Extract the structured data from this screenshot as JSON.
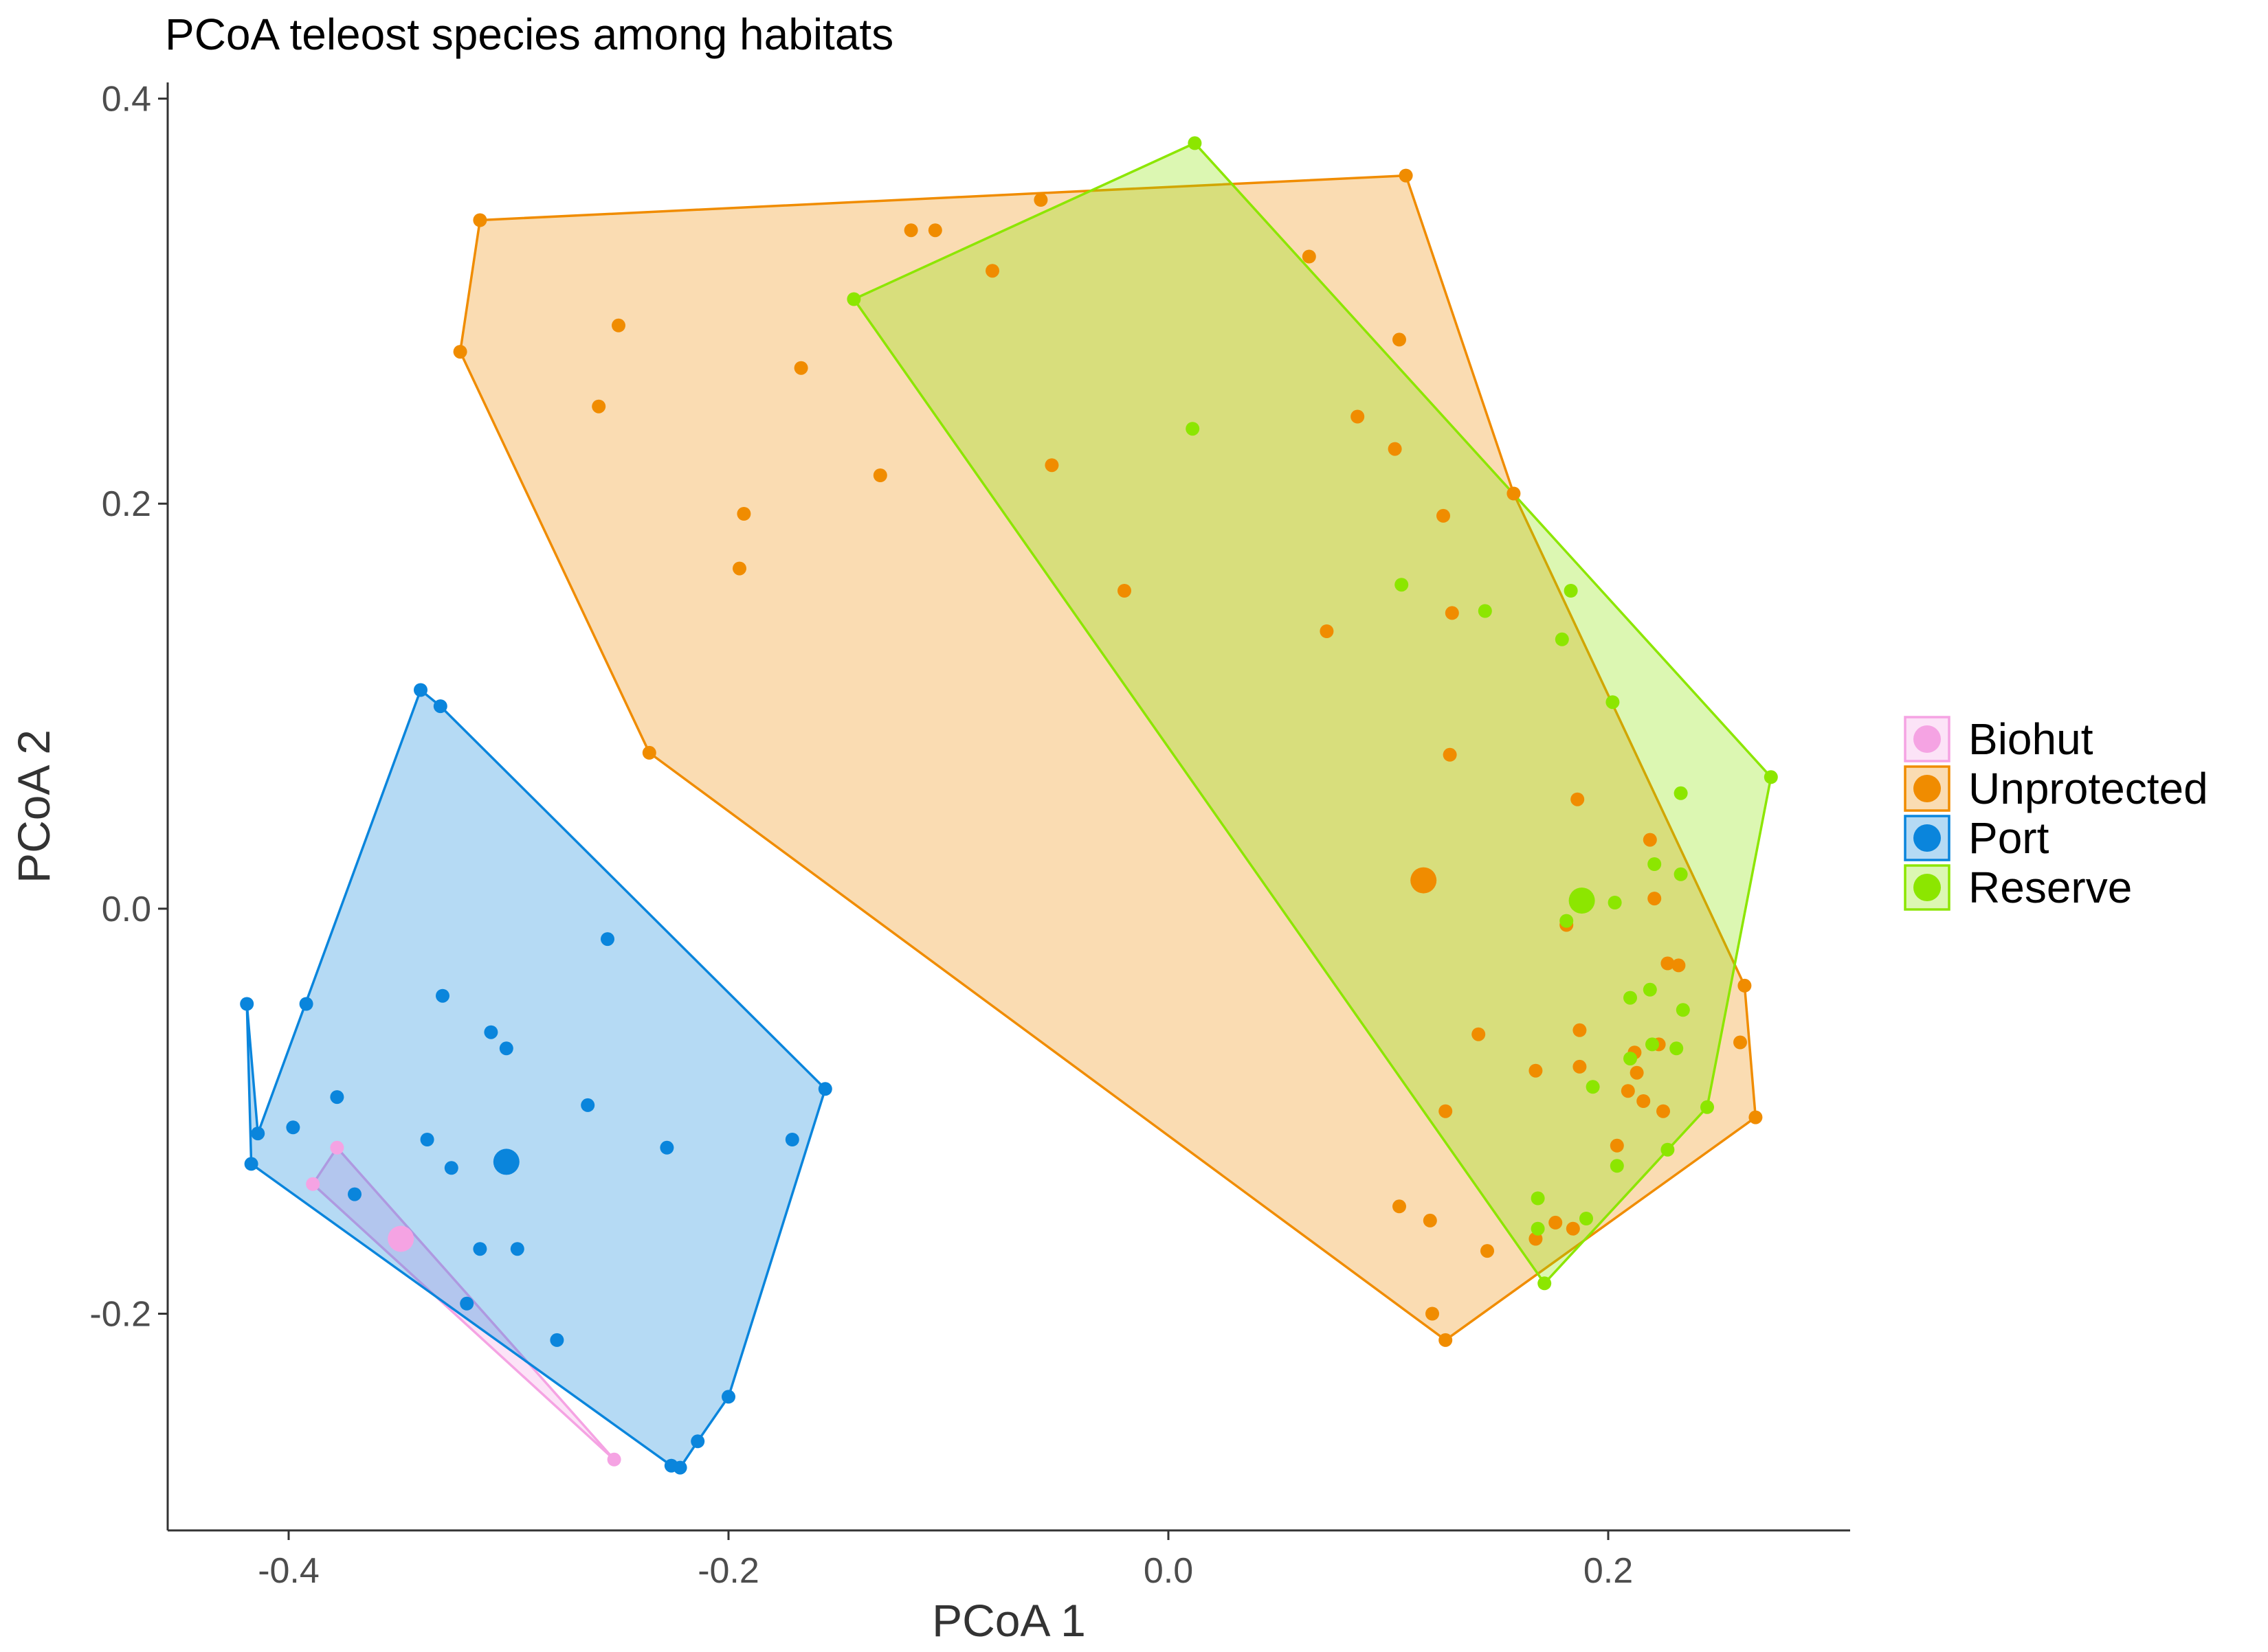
{
  "chart_data": {
    "type": "scatter",
    "title": "PCoA teleost species among habitats",
    "xlabel": "PCoA 1",
    "ylabel": "PCoA 2",
    "xlim": [
      -0.455,
      0.31
    ],
    "ylim": [
      -0.307,
      0.408
    ],
    "x_ticks": [
      -0.4,
      -0.2,
      0.0,
      0.2
    ],
    "x_tick_labels": [
      "-0.4",
      "-0.2",
      "0.0",
      "0.2"
    ],
    "y_ticks": [
      -0.2,
      0.0,
      0.2,
      0.4
    ],
    "y_tick_labels": [
      "-0.2",
      "0.0",
      "0.2",
      "0.4"
    ],
    "grid": false,
    "legend_position": "right",
    "series": [
      {
        "name": "Biohut",
        "color": "#F5A3E3",
        "centroid": [
          -0.349,
          -0.163
        ],
        "hull": [
          [
            -0.378,
            -0.118
          ],
          [
            -0.252,
            -0.272
          ],
          [
            -0.389,
            -0.136
          ]
        ],
        "points": [
          [
            -0.378,
            -0.118
          ],
          [
            -0.389,
            -0.136
          ],
          [
            -0.252,
            -0.272
          ]
        ]
      },
      {
        "name": "Unprotected",
        "color": "#F08C00",
        "centroid": [
          0.116,
          0.014
        ],
        "hull": [
          [
            -0.313,
            0.34
          ],
          [
            0.108,
            0.362
          ],
          [
            0.157,
            0.205
          ],
          [
            0.262,
            -0.038
          ],
          [
            0.267,
            -0.103
          ],
          [
            0.126,
            -0.213
          ],
          [
            -0.236,
            0.077
          ],
          [
            -0.322,
            0.275
          ]
        ],
        "points": [
          [
            -0.313,
            0.34
          ],
          [
            -0.322,
            0.275
          ],
          [
            -0.25,
            0.288
          ],
          [
            -0.259,
            0.248
          ],
          [
            -0.236,
            0.077
          ],
          [
            -0.193,
            0.195
          ],
          [
            -0.195,
            0.168
          ],
          [
            -0.167,
            0.267
          ],
          [
            -0.131,
            0.214
          ],
          [
            -0.117,
            0.335
          ],
          [
            -0.106,
            0.335
          ],
          [
            -0.08,
            0.315
          ],
          [
            -0.058,
            0.35
          ],
          [
            -0.053,
            0.219
          ],
          [
            -0.02,
            0.157
          ],
          [
            0.064,
            0.322
          ],
          [
            0.072,
            0.137
          ],
          [
            0.086,
            0.243
          ],
          [
            0.103,
            0.227
          ],
          [
            0.105,
            0.281
          ],
          [
            0.108,
            0.362
          ],
          [
            0.125,
            0.194
          ],
          [
            0.129,
            0.146
          ],
          [
            0.128,
            0.076
          ],
          [
            0.141,
            -0.062
          ],
          [
            0.126,
            -0.1
          ],
          [
            0.105,
            -0.147
          ],
          [
            0.119,
            -0.154
          ],
          [
            0.145,
            -0.169
          ],
          [
            0.12,
            -0.2
          ],
          [
            0.126,
            -0.213
          ],
          [
            0.157,
            0.205
          ],
          [
            0.167,
            -0.08
          ],
          [
            0.167,
            -0.163
          ],
          [
            0.176,
            -0.155
          ],
          [
            0.184,
            -0.158
          ],
          [
            0.187,
            -0.06
          ],
          [
            0.187,
            -0.078
          ],
          [
            0.186,
            0.054
          ],
          [
            0.181,
            -0.008
          ],
          [
            0.209,
            -0.09
          ],
          [
            0.212,
            -0.071
          ],
          [
            0.213,
            -0.081
          ],
          [
            0.219,
            0.034
          ],
          [
            0.223,
            -0.067
          ],
          [
            0.221,
            0.005
          ],
          [
            0.216,
            -0.095
          ],
          [
            0.225,
            -0.1
          ],
          [
            0.204,
            -0.117
          ],
          [
            0.227,
            -0.027
          ],
          [
            0.232,
            -0.028
          ],
          [
            0.262,
            -0.038
          ],
          [
            0.26,
            -0.066
          ],
          [
            0.267,
            -0.103
          ]
        ]
      },
      {
        "name": "Port",
        "color": "#0A85DC",
        "centroid": [
          -0.301,
          -0.125
        ],
        "hull": [
          [
            -0.34,
            0.108
          ],
          [
            -0.331,
            0.1
          ],
          [
            -0.156,
            -0.089
          ],
          [
            -0.2,
            -0.241
          ],
          [
            -0.214,
            -0.263
          ],
          [
            -0.222,
            -0.276
          ],
          [
            -0.226,
            -0.275
          ],
          [
            -0.417,
            -0.126
          ],
          [
            -0.419,
            -0.047
          ],
          [
            -0.414,
            -0.111
          ]
        ],
        "points": [
          [
            -0.34,
            0.108
          ],
          [
            -0.331,
            0.1
          ],
          [
            -0.419,
            -0.047
          ],
          [
            -0.392,
            -0.047
          ],
          [
            -0.414,
            -0.111
          ],
          [
            -0.417,
            -0.126
          ],
          [
            -0.398,
            -0.108
          ],
          [
            -0.378,
            -0.093
          ],
          [
            -0.37,
            -0.141
          ],
          [
            -0.33,
            -0.043
          ],
          [
            -0.308,
            -0.061
          ],
          [
            -0.301,
            -0.069
          ],
          [
            -0.337,
            -0.114
          ],
          [
            -0.326,
            -0.128
          ],
          [
            -0.319,
            -0.195
          ],
          [
            -0.313,
            -0.168
          ],
          [
            -0.296,
            -0.168
          ],
          [
            -0.278,
            -0.213
          ],
          [
            -0.264,
            -0.097
          ],
          [
            -0.255,
            -0.015
          ],
          [
            -0.228,
            -0.118
          ],
          [
            -0.226,
            -0.275
          ],
          [
            -0.222,
            -0.276
          ],
          [
            -0.214,
            -0.263
          ],
          [
            -0.2,
            -0.241
          ],
          [
            -0.171,
            -0.114
          ],
          [
            -0.156,
            -0.089
          ]
        ]
      },
      {
        "name": "Reserve",
        "color": "#8CE600",
        "centroid": [
          0.188,
          0.004
        ],
        "hull": [
          [
            0.012,
            0.378
          ],
          [
            0.274,
            0.065
          ],
          [
            0.245,
            -0.098
          ],
          [
            0.171,
            -0.185
          ],
          [
            -0.143,
            0.301
          ]
        ],
        "points": [
          [
            0.012,
            0.378
          ],
          [
            -0.143,
            0.301
          ],
          [
            0.011,
            0.237
          ],
          [
            0.106,
            0.16
          ],
          [
            0.144,
            0.147
          ],
          [
            0.183,
            0.157
          ],
          [
            0.179,
            0.133
          ],
          [
            0.202,
            0.102
          ],
          [
            0.233,
            0.057
          ],
          [
            0.274,
            0.065
          ],
          [
            0.221,
            0.022
          ],
          [
            0.233,
            0.017
          ],
          [
            0.203,
            0.003
          ],
          [
            0.181,
            -0.006
          ],
          [
            0.21,
            -0.044
          ],
          [
            0.219,
            -0.04
          ],
          [
            0.234,
            -0.05
          ],
          [
            0.21,
            -0.074
          ],
          [
            0.22,
            -0.067
          ],
          [
            0.231,
            -0.069
          ],
          [
            0.193,
            -0.088
          ],
          [
            0.245,
            -0.098
          ],
          [
            0.204,
            -0.127
          ],
          [
            0.227,
            -0.119
          ],
          [
            0.168,
            -0.143
          ],
          [
            0.168,
            -0.158
          ],
          [
            0.19,
            -0.153
          ],
          [
            0.171,
            -0.185
          ]
        ]
      }
    ]
  }
}
